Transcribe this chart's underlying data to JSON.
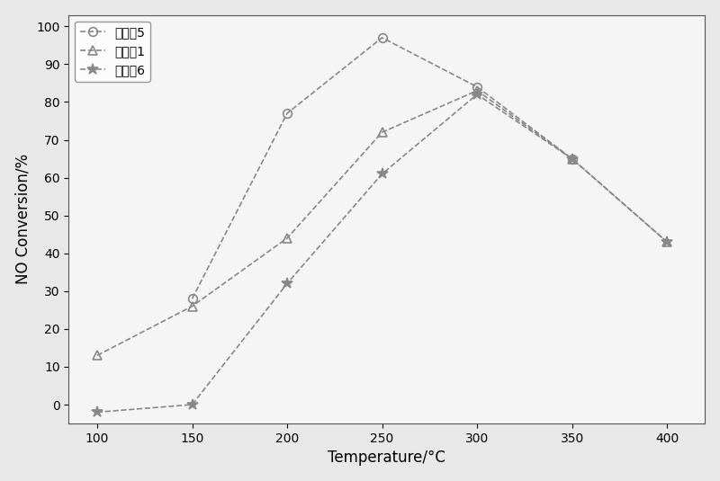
{
  "series": [
    {
      "label": "催化剂5",
      "x": [
        100,
        150,
        200,
        250,
        300,
        350,
        400
      ],
      "y": [
        null,
        28,
        77,
        97,
        84,
        65,
        null
      ],
      "marker": "o",
      "linestyle": "--",
      "color": "#888888"
    },
    {
      "label": "催化剂1",
      "x": [
        100,
        150,
        200,
        250,
        300,
        350,
        400
      ],
      "y": [
        13,
        26,
        44,
        72,
        83,
        65,
        43
      ],
      "marker": "^",
      "linestyle": "--",
      "color": "#888888"
    },
    {
      "label": "催化剂6",
      "x": [
        100,
        150,
        200,
        250,
        300,
        350,
        400
      ],
      "y": [
        -2,
        0,
        32,
        61,
        82,
        65,
        43
      ],
      "marker": "*",
      "linestyle": "--",
      "color": "#888888"
    }
  ],
  "xlabel": "Temperature/°C",
  "ylabel": "NO Conversion/%",
  "xlim": [
    85,
    420
  ],
  "ylim": [
    -5,
    103
  ],
  "xticks": [
    100,
    150,
    200,
    250,
    300,
    350,
    400
  ],
  "yticks": [
    0,
    10,
    20,
    30,
    40,
    50,
    60,
    70,
    80,
    90,
    100
  ],
  "background_color": "#f0f0f0",
  "grid": false,
  "legend_loc": "upper left",
  "title_fontsize": 12,
  "axis_fontsize": 12,
  "tick_fontsize": 10
}
